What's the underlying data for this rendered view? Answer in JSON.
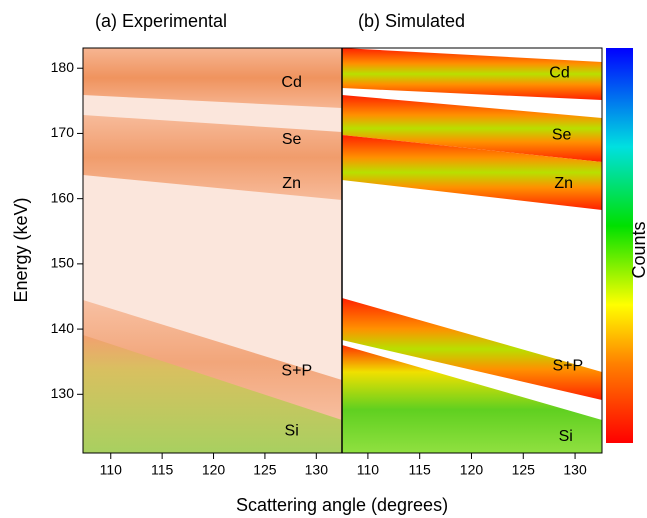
{
  "chart_data": [
    {
      "type": "heatmap",
      "title": "(a) Experimental",
      "xlabel": "Scattering angle (degrees)",
      "ylabel": "Energy (keV)",
      "xlim": [
        107.3,
        132.5
      ],
      "xticks": [
        110,
        115,
        120,
        125,
        130
      ],
      "ylim": [
        121,
        183.1
      ],
      "yticks": [
        130,
        140,
        150,
        160,
        170,
        180
      ],
      "annotations": [
        {
          "text": "Cd",
          "x": 127.6,
          "y": 177.8
        },
        {
          "text": "Se",
          "x": 127.6,
          "y": 169
        },
        {
          "text": "Zn",
          "x": 127.6,
          "y": 162.3
        },
        {
          "text": "S+P",
          "x": 128.1,
          "y": 133.5
        },
        {
          "text": "Si",
          "x": 127.6,
          "y": 124.3
        }
      ]
    },
    {
      "type": "heatmap",
      "title": "(b) Simulated",
      "colorbar_label": "Counts",
      "xlim": [
        107.5,
        132.6
      ],
      "xticks": [
        110,
        115,
        120,
        125,
        130
      ],
      "ylim": [
        121,
        183.1
      ],
      "annotations": [
        {
          "text": "Cd",
          "x": 128.5,
          "y": 179.2
        },
        {
          "text": "Se",
          "x": 128.7,
          "y": 169.7
        },
        {
          "text": "Zn",
          "x": 128.9,
          "y": 162.3
        },
        {
          "text": "S+P",
          "x": 129.3,
          "y": 134.3
        },
        {
          "text": "Si",
          "x": 129.1,
          "y": 123.5
        }
      ]
    }
  ]
}
